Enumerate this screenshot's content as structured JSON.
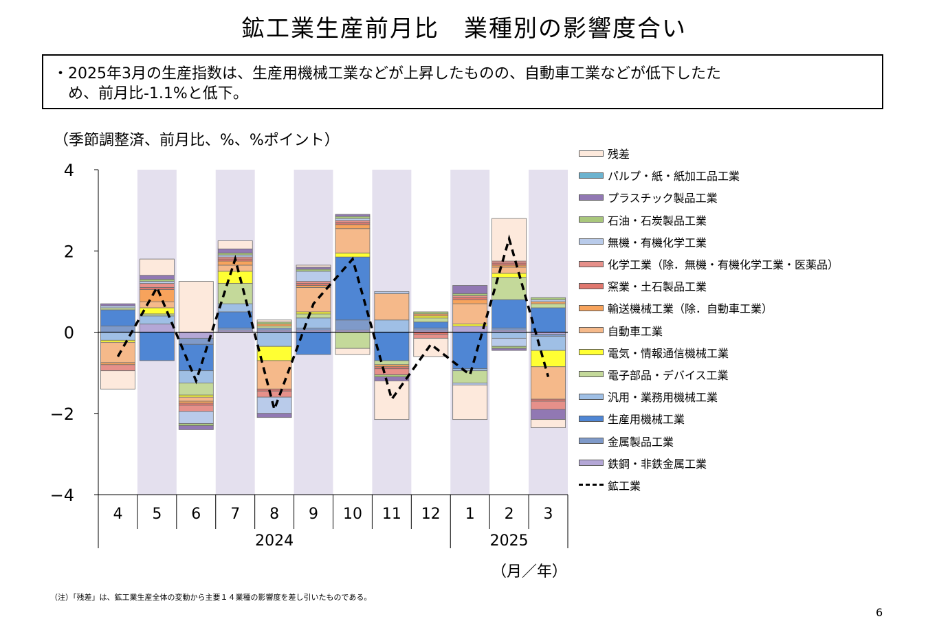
{
  "title": "鉱工業生産前月比　業種別の影響度合い",
  "summary": {
    "line1": "・2025年3月の生産指数は、生産用機械工業などが上昇したものの、自動車工業などが低下したた",
    "line2": "め、前月比-1.1%と低下。"
  },
  "unit_label": "（季節調整済、前月比、%、%ポイント）",
  "x_axis_unit": "（月／年）",
  "note": "（注）「残差」は、鉱工業生産全体の変動から主要１４業種の影響度を差し引いたものである。",
  "page_number": "6",
  "chart_data": {
    "type": "bar",
    "stacked": true,
    "ylim": [
      -4,
      4
    ],
    "yticks": [
      4,
      2,
      0,
      -2,
      -4
    ],
    "ytick_labels": [
      "4",
      "2",
      "0",
      "−2",
      "−4"
    ],
    "categories": [
      "4",
      "5",
      "6",
      "7",
      "8",
      "9",
      "10",
      "11",
      "12",
      "1",
      "2",
      "3"
    ],
    "year_labels": [
      {
        "label": "2024",
        "span": [
          0,
          8
        ]
      },
      {
        "label": "2025",
        "span": [
          9,
          11
        ]
      }
    ],
    "shaded_categories": [
      1,
      3,
      5,
      7,
      9,
      11
    ],
    "shade_color": "#e4e0ee",
    "series": [
      {
        "name": "鉄鋼・非鉄金属工業",
        "color": "#b4a7d6",
        "values": [
          0.0,
          0.2,
          -0.15,
          0.05,
          0.05,
          0.05,
          0.05,
          0.0,
          0.05,
          0.15,
          0.05,
          -0.05
        ]
      },
      {
        "name": "金属製品工業",
        "color": "#7f9ac9",
        "values": [
          0.15,
          0.0,
          -0.15,
          0.05,
          0.05,
          0.05,
          0.25,
          0.0,
          0.05,
          0.0,
          0.05,
          -0.05
        ]
      },
      {
        "name": "生産用機械工業",
        "color": "#4f86d4",
        "values": [
          0.4,
          -0.7,
          -0.65,
          0.4,
          0.0,
          -0.55,
          1.55,
          -0.7,
          0.15,
          -0.9,
          0.7,
          0.6
        ]
      },
      {
        "name": "汎用・業務用機械工業",
        "color": "#9fbfe5",
        "values": [
          -0.2,
          0.2,
          -0.3,
          0.2,
          -0.35,
          0.25,
          0.0,
          0.3,
          0.0,
          -0.05,
          -0.15,
          -0.35
        ]
      },
      {
        "name": "電子部品・デバイス工業",
        "color": "#c4d99a",
        "values": [
          0.05,
          0.05,
          -0.3,
          0.5,
          0.05,
          0.1,
          -0.4,
          -0.1,
          0.1,
          -0.3,
          0.55,
          0.1
        ]
      },
      {
        "name": "電気・情報通信機械工業",
        "color": "#ffff33",
        "values": [
          -0.05,
          0.15,
          -0.05,
          0.3,
          -0.35,
          0.05,
          0.1,
          0.0,
          0.05,
          0.05,
          0.1,
          -0.4
        ]
      },
      {
        "name": "自動車工業",
        "color": "#f5b98a",
        "values": [
          -0.5,
          0.15,
          -0.1,
          0.15,
          -0.7,
          0.6,
          0.6,
          0.65,
          0.0,
          0.5,
          0.15,
          -0.8
        ]
      },
      {
        "name": "輸送機械工業（除．自動車工業）",
        "color": "#f7a35c",
        "values": [
          -0.05,
          0.3,
          -0.05,
          0.1,
          0.05,
          0.05,
          0.1,
          -0.05,
          0.05,
          0.1,
          0.05,
          0.05
        ]
      },
      {
        "name": "窯業・土石製品工業",
        "color": "#e0776e",
        "values": [
          0.0,
          0.05,
          -0.05,
          0.05,
          -0.05,
          0.05,
          0.05,
          -0.05,
          -0.05,
          0.05,
          0.05,
          -0.05
        ]
      },
      {
        "name": "化学工業（除．無機・有機化学工業・医薬品）",
        "color": "#e6908a",
        "values": [
          -0.15,
          0.1,
          -0.15,
          0.05,
          -0.15,
          0.05,
          0.05,
          -0.15,
          -0.1,
          0.05,
          0.05,
          -0.2
        ]
      },
      {
        "name": "無機・有機化学工業",
        "color": "#b9cbea",
        "values": [
          0.05,
          0.05,
          -0.3,
          0.05,
          -0.4,
          0.25,
          0.05,
          0.05,
          0.0,
          -0.05,
          -0.2,
          0.05
        ]
      },
      {
        "name": "石油・石炭製品工業",
        "color": "#a9c77c",
        "values": [
          0.0,
          0.05,
          -0.05,
          0.05,
          0.05,
          0.05,
          0.05,
          -0.05,
          0.05,
          0.05,
          -0.05,
          0.05
        ]
      },
      {
        "name": "プラスチック製品工業",
        "color": "#9178b3",
        "values": [
          0.05,
          0.1,
          -0.1,
          0.1,
          -0.1,
          0.05,
          0.05,
          -0.1,
          0.0,
          0.2,
          -0.05,
          -0.25
        ]
      },
      {
        "name": "パルプ・紙・紙加工品工業",
        "color": "#6cb3cf",
        "values": [
          0.0,
          0.0,
          0.0,
          0.0,
          0.0,
          0.0,
          0.0,
          0.0,
          0.0,
          0.0,
          0.0,
          0.0
        ]
      },
      {
        "name": "残差",
        "color": "#fde9dc",
        "values": [
          -0.45,
          0.4,
          1.25,
          0.2,
          0.05,
          0.05,
          -0.15,
          -0.95,
          -0.45,
          -0.85,
          1.05,
          -0.2
        ]
      }
    ],
    "line_series": {
      "name": "鉱工業",
      "style": "dashed",
      "color": "#000000",
      "values": [
        -0.6,
        1.1,
        -1.2,
        1.8,
        -1.9,
        0.7,
        1.8,
        -1.65,
        -0.3,
        -1.05,
        2.3,
        -1.1
      ]
    }
  }
}
